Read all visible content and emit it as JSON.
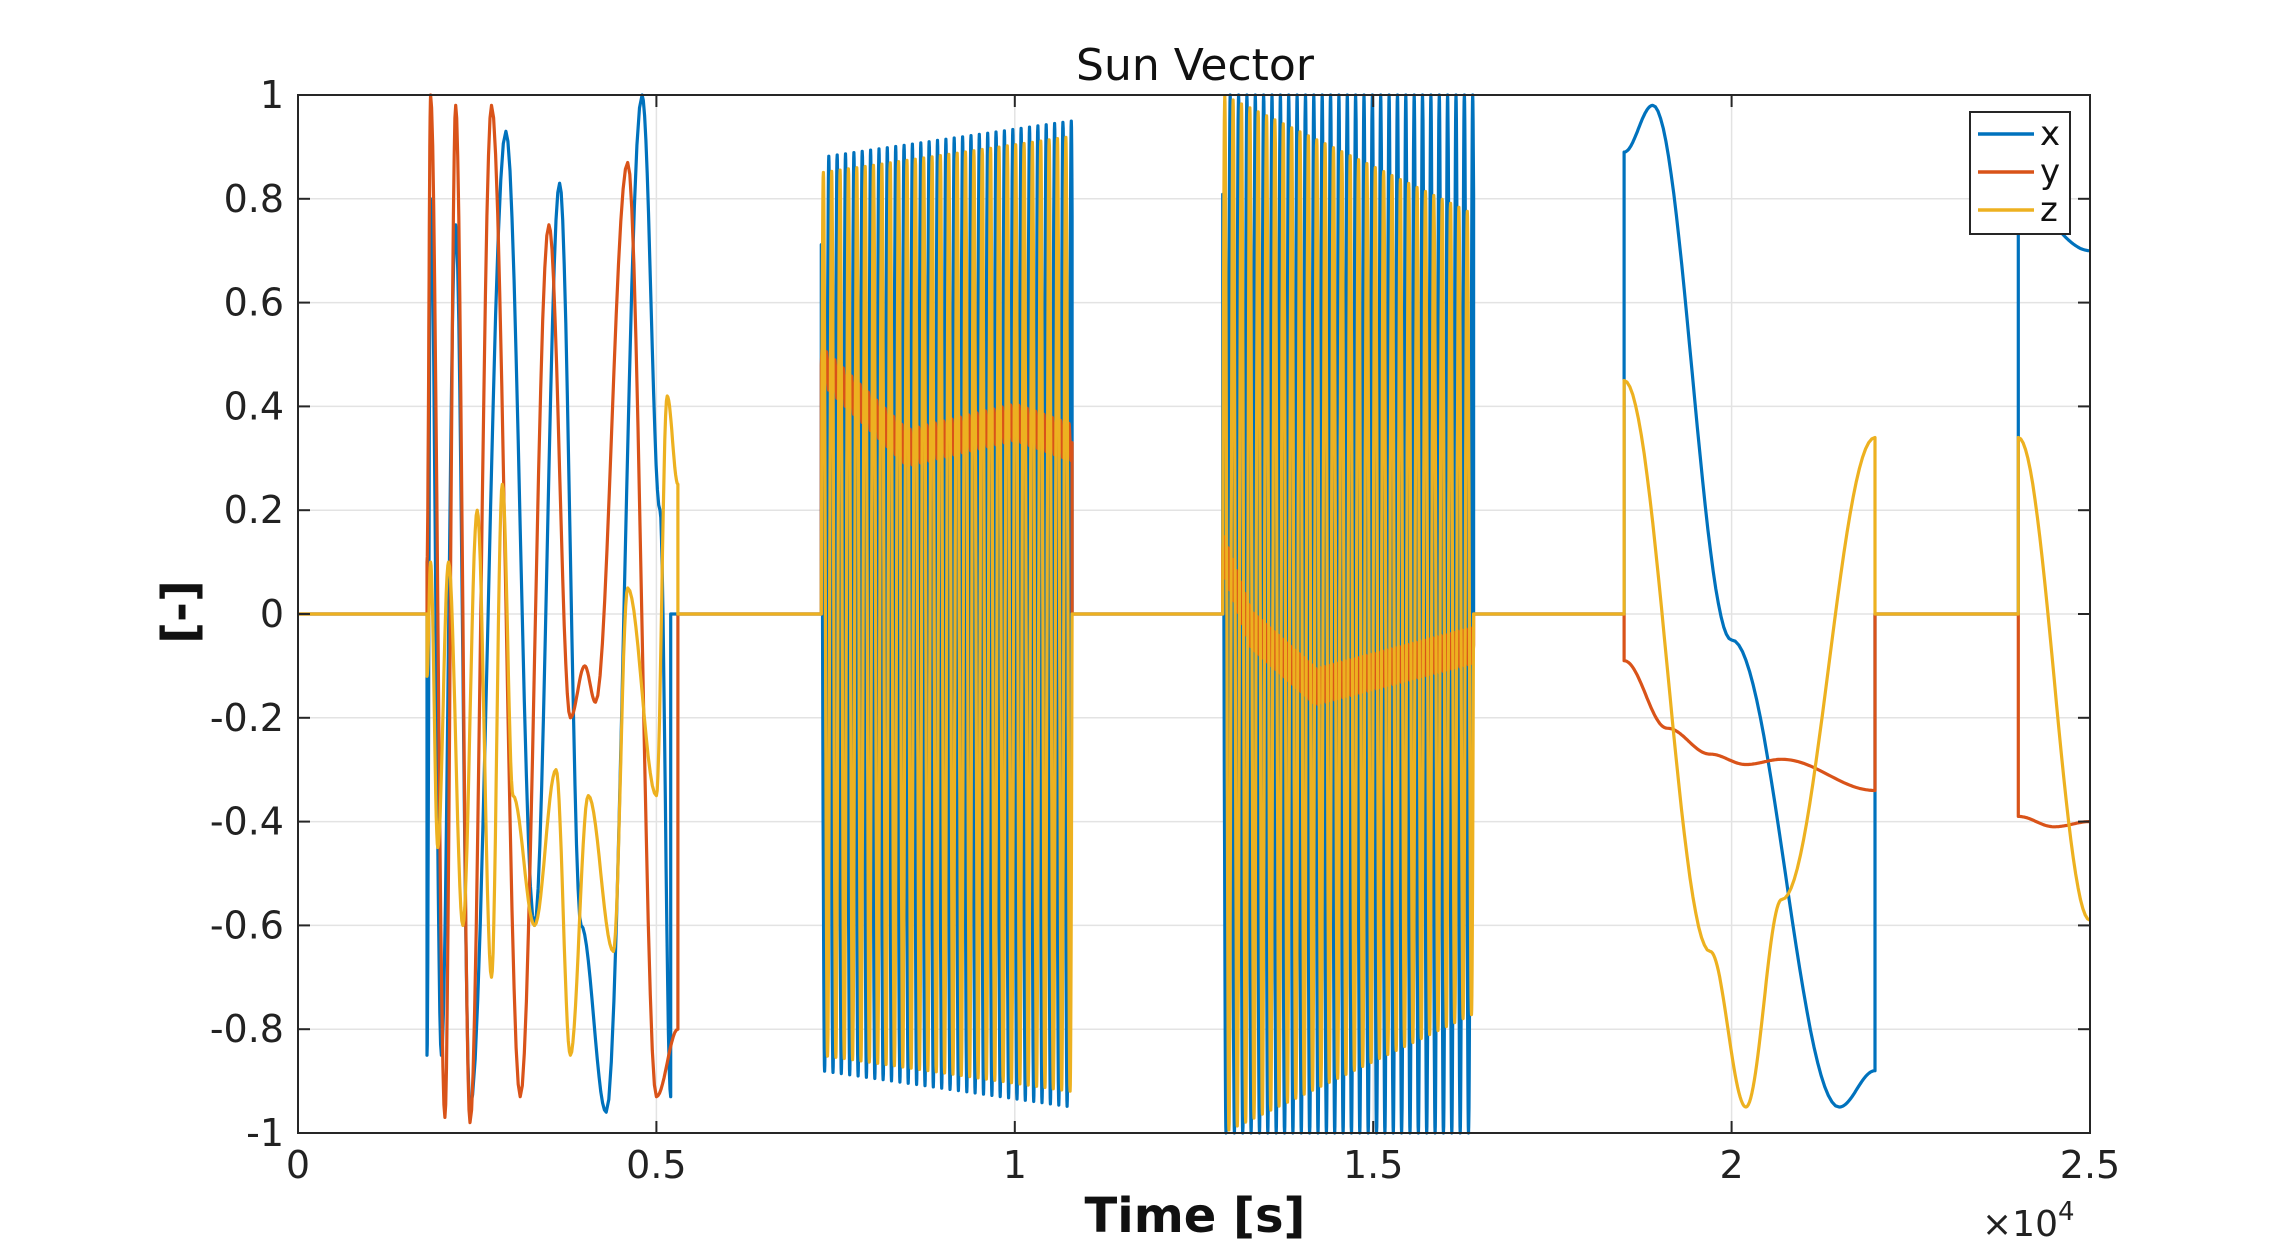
{
  "chart_data": {
    "type": "line",
    "title": "Sun Vector",
    "xlabel": "Time [s]",
    "ylabel": "[-]",
    "x_exponent_label": "×10",
    "x_exponent_power": "4",
    "xlim": [
      0,
      25000
    ],
    "ylim": [
      -1,
      1
    ],
    "grid": true,
    "legend_position": "top-right",
    "x_ticks": [
      {
        "value": 0,
        "label": "0"
      },
      {
        "value": 5000,
        "label": "0.5"
      },
      {
        "value": 10000,
        "label": "1"
      },
      {
        "value": 15000,
        "label": "1.5"
      },
      {
        "value": 20000,
        "label": "2"
      },
      {
        "value": 25000,
        "label": "2.5"
      }
    ],
    "y_ticks": [
      {
        "value": 1,
        "label": "1"
      },
      {
        "value": 0.8,
        "label": "0.8"
      },
      {
        "value": 0.6,
        "label": "0.6"
      },
      {
        "value": 0.4,
        "label": "0.4"
      },
      {
        "value": 0.2,
        "label": "0.2"
      },
      {
        "value": 0,
        "label": "0"
      },
      {
        "value": -0.2,
        "label": "-0.2"
      },
      {
        "value": -0.4,
        "label": "-0.4"
      },
      {
        "value": -0.6,
        "label": "-0.6"
      },
      {
        "value": -0.8,
        "label": "-0.8"
      },
      {
        "value": -1,
        "label": "-1"
      }
    ],
    "series": [
      {
        "name": "x",
        "color": "#0072BD"
      },
      {
        "name": "y",
        "color": "#D95319"
      },
      {
        "name": "z",
        "color": "#EDB120"
      }
    ],
    "segments": [
      {
        "kind": "damped-oscillation",
        "t_start": 1800,
        "t_end": 5300,
        "x": {
          "start": -0.85,
          "peaks": [
            [
              1850,
              0.8
            ],
            [
              2000,
              -0.85
            ],
            [
              2200,
              0.75
            ],
            [
              2400,
              -0.95
            ],
            [
              2900,
              0.93
            ],
            [
              3300,
              -0.6
            ],
            [
              3650,
              0.83
            ],
            [
              3950,
              -0.6
            ],
            [
              4300,
              -0.96
            ],
            [
              4800,
              1.0
            ],
            [
              5050,
              0.2
            ],
            [
              5200,
              -0.93
            ]
          ]
        },
        "y": {
          "start": 0.1,
          "peaks": [
            [
              1850,
              1.0
            ],
            [
              2050,
              -0.97
            ],
            [
              2200,
              0.98
            ],
            [
              2400,
              -0.98
            ],
            [
              2700,
              0.98
            ],
            [
              3100,
              -0.93
            ],
            [
              3500,
              0.75
            ],
            [
              3800,
              -0.2
            ],
            [
              4000,
              -0.1
            ],
            [
              4150,
              -0.17
            ],
            [
              4600,
              0.87
            ],
            [
              5000,
              -0.93
            ],
            [
              5300,
              -0.8
            ]
          ]
        },
        "z": {
          "start": -0.12,
          "peaks": [
            [
              1850,
              0.1
            ],
            [
              1950,
              -0.45
            ],
            [
              2100,
              0.1
            ],
            [
              2300,
              -0.6
            ],
            [
              2500,
              0.2
            ],
            [
              2700,
              -0.7
            ],
            [
              2850,
              0.25
            ],
            [
              3000,
              -0.35
            ],
            [
              3300,
              -0.6
            ],
            [
              3600,
              -0.3
            ],
            [
              3800,
              -0.85
            ],
            [
              4050,
              -0.35
            ],
            [
              4400,
              -0.65
            ],
            [
              4600,
              0.05
            ],
            [
              5000,
              -0.35
            ],
            [
              5150,
              0.42
            ],
            [
              5300,
              0.25
            ]
          ]
        }
      },
      {
        "kind": "fast-oscillation",
        "t_start": 7300,
        "t_end": 10800,
        "cycles": 30,
        "x_amplitude": [
          0.88,
          0.95
        ],
        "z_amplitude": [
          0.85,
          0.92
        ],
        "y_trend": [
          [
            7300,
            0.48
          ],
          [
            8500,
            0.32
          ],
          [
            10000,
            0.37
          ],
          [
            10800,
            0.33
          ]
        ]
      },
      {
        "kind": "fast-oscillation",
        "t_start": 12900,
        "t_end": 16400,
        "cycles": 30,
        "x_amplitude": [
          1.0,
          1.0
        ],
        "z_amplitude": [
          1.0,
          0.77
        ],
        "y_trend": [
          [
            12900,
            0.12
          ],
          [
            13300,
            -0.03
          ],
          [
            14200,
            -0.14
          ],
          [
            16400,
            -0.06
          ]
        ]
      },
      {
        "kind": "slow-arc",
        "t_start": 18500,
        "t_end": 22000,
        "x": [
          [
            18500,
            0.45
          ],
          [
            18500,
            0.89
          ],
          [
            18900,
            0.98
          ],
          [
            20000,
            -0.05
          ],
          [
            21500,
            -0.95
          ],
          [
            22000,
            -0.88
          ],
          [
            22000,
            0
          ]
        ],
        "y": [
          [
            18500,
            -0.09
          ],
          [
            19100,
            -0.22
          ],
          [
            19700,
            -0.27
          ],
          [
            20200,
            -0.29
          ],
          [
            20700,
            -0.28
          ],
          [
            22000,
            -0.34
          ],
          [
            22000,
            0
          ]
        ],
        "z": [
          [
            18500,
            0.45
          ],
          [
            19700,
            -0.65
          ],
          [
            20200,
            -0.95
          ],
          [
            20700,
            -0.55
          ],
          [
            22000,
            0.34
          ],
          [
            22000,
            0
          ]
        ]
      },
      {
        "kind": "slow-arc",
        "t_start": 24000,
        "t_end": 25000,
        "x": [
          [
            24000,
            0.35
          ],
          [
            24000,
            0.8
          ],
          [
            25000,
            0.7
          ]
        ],
        "y": [
          [
            24000,
            -0.39
          ],
          [
            24500,
            -0.41
          ],
          [
            25000,
            -0.4
          ]
        ],
        "z": [
          [
            24000,
            0.34
          ],
          [
            25000,
            -0.59
          ]
        ]
      }
    ]
  }
}
